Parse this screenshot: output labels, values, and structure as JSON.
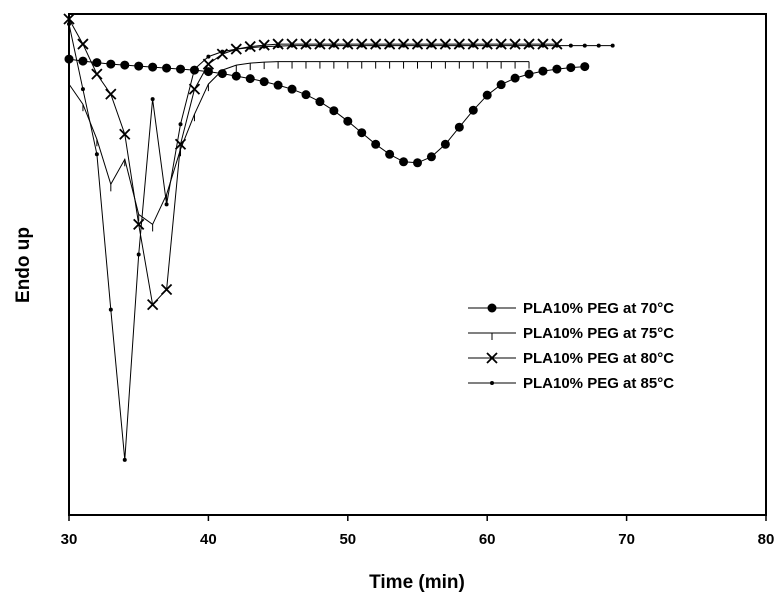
{
  "chart_data": {
    "type": "line",
    "xlabel": "Time (min)",
    "ylabel": "Endo up",
    "xlim": [
      30,
      80
    ],
    "ylim": [
      0,
      100
    ],
    "xticks": [
      30,
      40,
      50,
      60,
      70,
      80
    ],
    "y_tick_labels": "none",
    "grid": false,
    "legend_position": "right",
    "series": [
      {
        "name": "PLA10% PEG at 70°C",
        "marker": "filled-circle",
        "x": [
          30,
          31,
          32,
          33,
          34,
          35,
          36,
          37,
          38,
          39,
          40,
          41,
          42,
          43,
          44,
          45,
          46,
          47,
          48,
          49,
          50,
          51,
          52,
          53,
          54,
          55,
          56,
          57,
          58,
          59,
          60,
          61,
          62,
          63,
          64,
          65,
          66,
          67
        ],
        "y": [
          91,
          90.6,
          90.3,
          90.0,
          89.8,
          89.6,
          89.4,
          89.2,
          89.0,
          88.8,
          88.5,
          88.1,
          87.6,
          87.1,
          86.5,
          85.8,
          85.0,
          83.9,
          82.5,
          80.7,
          78.6,
          76.3,
          74.0,
          72.0,
          70.5,
          70.3,
          71.5,
          74.0,
          77.4,
          80.8,
          83.8,
          85.9,
          87.2,
          88.0,
          88.6,
          89.0,
          89.3,
          89.5
        ]
      },
      {
        "name": "PLA10% PEG at 75°C",
        "marker": "vertical-tick",
        "x": [
          30,
          31,
          32,
          33,
          34,
          35,
          36,
          37,
          38,
          39,
          40,
          41,
          42,
          43,
          44,
          45,
          46,
          47,
          48,
          49,
          50,
          51,
          52,
          53,
          54,
          55,
          56,
          57,
          58,
          59,
          60,
          61,
          62,
          63
        ],
        "y": [
          86,
          82,
          75,
          66,
          71,
          60,
          58,
          64,
          73,
          80,
          86,
          88.8,
          89.8,
          90.2,
          90.4,
          90.5,
          90.5,
          90.5,
          90.5,
          90.5,
          90.5,
          90.5,
          90.5,
          90.5,
          90.5,
          90.5,
          90.5,
          90.5,
          90.5,
          90.5,
          90.5,
          90.5,
          90.5,
          90.5
        ]
      },
      {
        "name": "PLA10% PEG at 80°C",
        "marker": "x",
        "x": [
          30,
          31,
          32,
          33,
          34,
          35,
          36,
          37,
          38,
          39,
          40,
          41,
          42,
          43,
          44,
          45,
          46,
          47,
          48,
          49,
          50,
          51,
          52,
          53,
          54,
          55,
          56,
          57,
          58,
          59,
          60,
          61,
          62,
          63,
          64,
          65
        ],
        "y": [
          99,
          94,
          88,
          84,
          76,
          58,
          42,
          45,
          74,
          85,
          90,
          92,
          93,
          93.5,
          93.8,
          94,
          94,
          94,
          94,
          94,
          94,
          94,
          94,
          94,
          94,
          94,
          94,
          94,
          94,
          94,
          94,
          94,
          94,
          94,
          94,
          94
        ]
      },
      {
        "name": "PLA10% PEG at 85°C",
        "marker": "small-dot",
        "x": [
          30,
          31,
          32,
          33,
          34,
          35,
          36,
          37,
          38,
          39,
          40,
          41,
          42,
          43,
          44,
          45,
          46,
          47,
          48,
          49,
          50,
          51,
          52,
          53,
          54,
          55,
          56,
          57,
          58,
          59,
          60,
          61,
          62,
          63,
          64,
          65,
          66,
          67,
          68,
          69
        ],
        "y": [
          98,
          85,
          72,
          41,
          11,
          52,
          83,
          62,
          78,
          89,
          91.5,
          92.5,
          93,
          93.3,
          93.5,
          93.6,
          93.7,
          93.7,
          93.7,
          93.7,
          93.7,
          93.7,
          93.7,
          93.7,
          93.7,
          93.7,
          93.7,
          93.7,
          93.7,
          93.7,
          93.7,
          93.7,
          93.7,
          93.7,
          93.7,
          93.7,
          93.7,
          93.7,
          93.7,
          93.7
        ]
      }
    ]
  }
}
